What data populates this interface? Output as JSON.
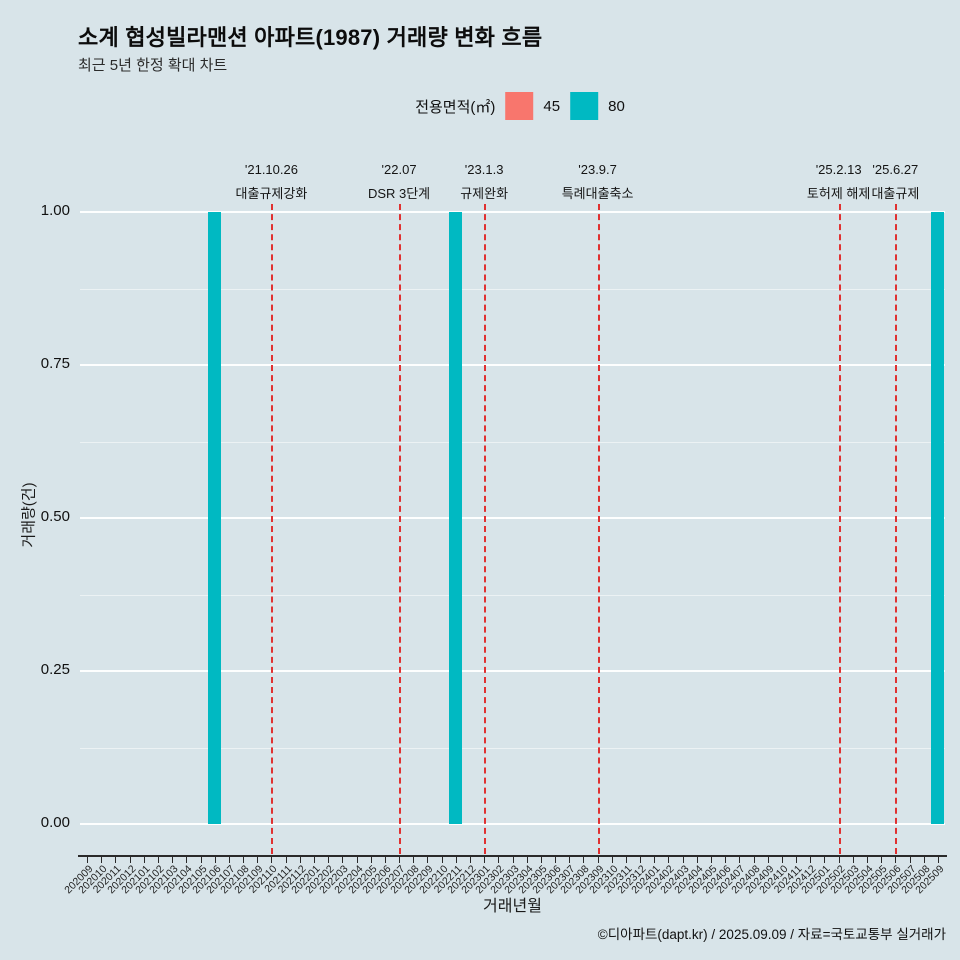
{
  "header": {
    "title": "소계 협성빌라맨션 아파트(1987) 거래량 변화 흐름",
    "subtitle": "최근 5년 한정 확대 차트"
  },
  "legend": {
    "title": "전용면적(㎡)",
    "items": [
      {
        "name": "45",
        "color": "#F8766D"
      },
      {
        "name": "80",
        "color": "#00B9C2"
      }
    ]
  },
  "footer": {
    "credit": "©디아파트(dapt.kr) / 2025.09.09 / 자료=국토교통부 실거래가"
  },
  "chart_data": {
    "type": "bar",
    "title": "소계 협성빌라맨션 아파트(1987) 거래량 변화 흐름",
    "subtitle": "최근 5년 한정 확대 차트",
    "xlabel": "거래년월",
    "ylabel": "거래량(건)",
    "ylim": [
      0,
      1.0
    ],
    "yticks": [
      0,
      0.25,
      0.5,
      0.75,
      1.0
    ],
    "yticks_minor": [
      0.125,
      0.375,
      0.625,
      0.875
    ],
    "grid": "horizontal-white",
    "legend_position": "top-center",
    "annotation_color": "#e03131",
    "categories": [
      "202009",
      "202010",
      "202011",
      "202012",
      "202101",
      "202102",
      "202103",
      "202104",
      "202105",
      "202106",
      "202107",
      "202108",
      "202109",
      "202110",
      "202111",
      "202112",
      "202201",
      "202202",
      "202203",
      "202204",
      "202205",
      "202206",
      "202207",
      "202208",
      "202209",
      "202210",
      "202211",
      "202212",
      "202301",
      "202302",
      "202303",
      "202304",
      "202305",
      "202306",
      "202307",
      "202308",
      "202309",
      "202310",
      "202311",
      "202312",
      "202401",
      "202402",
      "202403",
      "202404",
      "202405",
      "202406",
      "202407",
      "202408",
      "202409",
      "202410",
      "202411",
      "202412",
      "202501",
      "202502",
      "202503",
      "202504",
      "202505",
      "202506",
      "202507",
      "202508",
      "202509"
    ],
    "series": [
      {
        "name": "45",
        "color": "#F8766D",
        "values": [
          0,
          0,
          0,
          0,
          0,
          0,
          0,
          0,
          0,
          0,
          0,
          0,
          0,
          0,
          0,
          0,
          0,
          0,
          0,
          0,
          0,
          0,
          0,
          0,
          0,
          0,
          0,
          0,
          0,
          0,
          0,
          0,
          0,
          0,
          0,
          0,
          0,
          0,
          0,
          0,
          0,
          0,
          0,
          0,
          0,
          0,
          0,
          0,
          0,
          0,
          0,
          0,
          0,
          0,
          0,
          0,
          0,
          0,
          0,
          0,
          0
        ]
      },
      {
        "name": "80",
        "color": "#00B9C2",
        "values": [
          0,
          0,
          0,
          0,
          0,
          0,
          0,
          0,
          0,
          1,
          0,
          0,
          0,
          0,
          0,
          0,
          0,
          0,
          0,
          0,
          0,
          0,
          0,
          0,
          0,
          0,
          1,
          0,
          0,
          0,
          0,
          0,
          0,
          0,
          0,
          0,
          0,
          0,
          0,
          0,
          0,
          0,
          0,
          0,
          0,
          0,
          0,
          0,
          0,
          0,
          0,
          0,
          0,
          0,
          0,
          0,
          0,
          0,
          0,
          0,
          1
        ]
      }
    ],
    "annotations": [
      {
        "month": "202110",
        "date": "'21.10.26",
        "label": "대출규제강화"
      },
      {
        "month": "202207",
        "date": "'22.07",
        "label": "DSR 3단계"
      },
      {
        "month": "202301",
        "date": "'23.1.3",
        "label": "규제완화"
      },
      {
        "month": "202309",
        "date": "'23.9.7",
        "label": "특례대출축소"
      },
      {
        "month": "202502",
        "date": "'25.2.13",
        "label": "토허제 해제"
      },
      {
        "month": "202506",
        "date": "'25.6.27",
        "label": "대출규제"
      }
    ]
  }
}
